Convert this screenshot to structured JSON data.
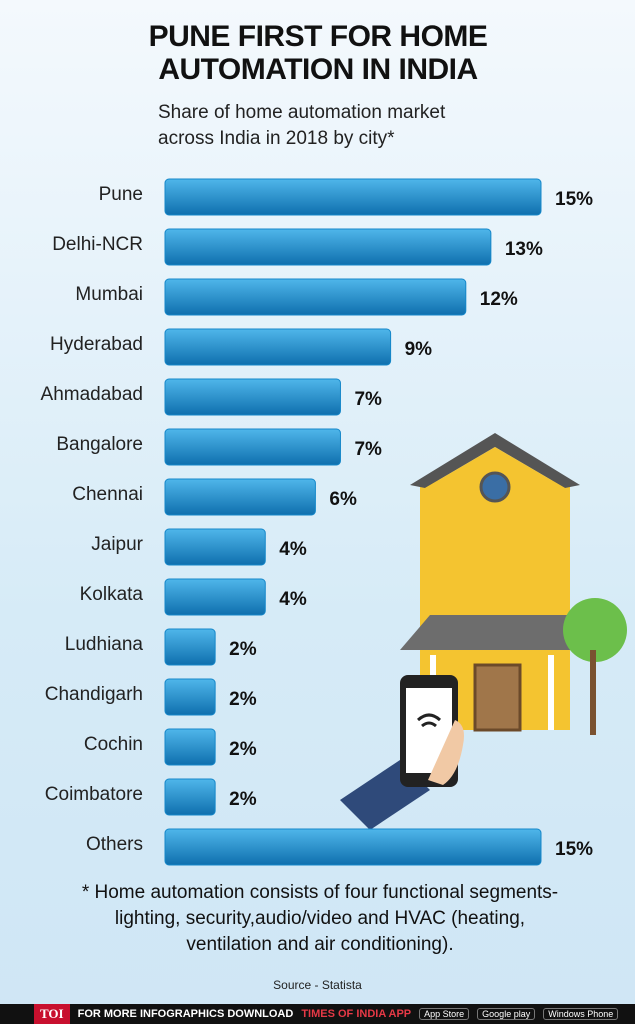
{
  "chart_data": {
    "type": "bar",
    "orientation": "horizontal",
    "title": "PUNE FIRST FOR HOME AUTOMATION IN INDIA",
    "subtitle": "Share of home automation market across India in 2018 by city*",
    "categories": [
      "Pune",
      "Delhi-NCR",
      "Mumbai",
      "Hyderabad",
      "Ahmadabad",
      "Bangalore",
      "Chennai",
      "Jaipur",
      "Kolkata",
      "Ludhiana",
      "Chandigarh",
      "Cochin",
      "Coimbatore",
      "Others"
    ],
    "values": [
      15,
      13,
      12,
      9,
      7,
      7,
      6,
      4,
      4,
      2,
      2,
      2,
      2,
      15
    ],
    "value_labels": [
      "15%",
      "13%",
      "12%",
      "9%",
      "7%",
      "7%",
      "6%",
      "4%",
      "4%",
      "2%",
      "2%",
      "2%",
      "2%",
      "15%"
    ],
    "color": "#1587c9",
    "note": "* Home automation consists of four functional segments-lighting, security,audio/video and HVAC (heating, ventilation and air conditioning).",
    "source": "Source - Statista"
  },
  "footer": {
    "brand": "TOI",
    "text": "FOR MORE  INFOGRAPHICS DOWNLOAD",
    "app": "TIMES OF INDIA APP",
    "badges": [
      "App Store",
      "Google play",
      "Windows Phone"
    ]
  }
}
